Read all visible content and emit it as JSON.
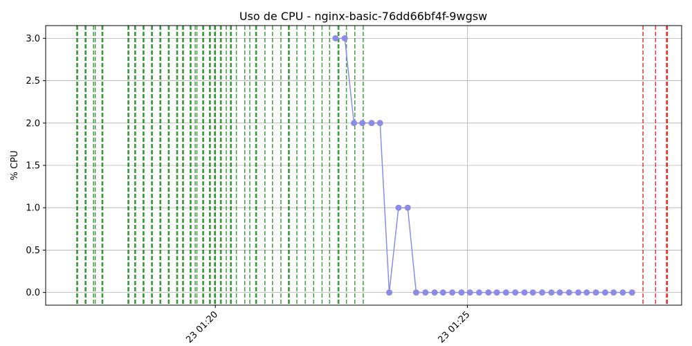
{
  "chart_data": {
    "type": "line",
    "title": "Uso de CPU - nginx-basic-76dd66bf4f-9wgsw",
    "xlabel": "",
    "ylabel": "% CPU",
    "x_axis": {
      "type": "time",
      "unit": "minutes",
      "range": [
        "01:16:38",
        "01:29:15"
      ],
      "ticks": [
        {
          "value": "01:20",
          "label": "23 01:20"
        },
        {
          "value": "01:25",
          "label": "23 01:25"
        }
      ]
    },
    "ylim": [
      -0.15,
      3.15
    ],
    "y_ticks": [
      "0.0",
      "0.5",
      "1.0",
      "1.5",
      "2.0",
      "2.5",
      "3.0"
    ],
    "grid": true,
    "colors": {
      "series": "#8c8ce6",
      "green_events": "#008000",
      "red_events": "#e60000"
    },
    "series": [
      {
        "x": [
          "01:22:23",
          "01:22:34",
          "01:22:45",
          "01:22:55",
          "01:23:06",
          "01:23:16",
          "01:23:27",
          "01:23:38",
          "01:23:49",
          "01:23:59",
          "01:24:10",
          "01:24:21",
          "01:24:31",
          "01:24:42",
          "01:24:53",
          "01:25:03",
          "01:25:14",
          "01:25:25",
          "01:25:35",
          "01:25:46",
          "01:25:57",
          "01:26:08",
          "01:26:18",
          "01:26:29",
          "01:26:40",
          "01:26:50",
          "01:27:01",
          "01:27:12",
          "01:27:22",
          "01:27:33",
          "01:27:44",
          "01:27:54",
          "01:28:05",
          "01:28:16"
        ],
        "values": [
          3,
          3,
          2,
          2,
          2,
          2,
          0,
          1,
          1,
          0,
          0,
          0,
          0,
          0,
          0,
          0,
          0,
          0,
          0,
          0,
          0,
          0,
          0,
          0,
          0,
          0,
          0,
          0,
          0,
          0,
          0,
          0,
          0,
          0
        ]
      }
    ],
    "vertical_lines": {
      "green": [
        "01:17:15",
        "01:17:16",
        "01:17:25",
        "01:17:26",
        "01:17:35",
        "01:17:37",
        "01:17:45",
        "01:17:46",
        "01:18:16",
        "01:18:17",
        "01:18:24",
        "01:18:25",
        "01:18:34",
        "01:18:35",
        "01:18:44",
        "01:18:45",
        "01:18:54",
        "01:18:55",
        "01:19:04",
        "01:19:05",
        "01:19:14",
        "01:19:15",
        "01:19:21",
        "01:19:22",
        "01:19:30",
        "01:19:31",
        "01:19:36",
        "01:19:38",
        "01:19:45",
        "01:19:46",
        "01:19:53",
        "01:19:54",
        "01:19:59",
        "01:20:00",
        "01:20:06",
        "01:20:07",
        "01:20:13",
        "01:20:18",
        "01:20:19",
        "01:20:25",
        "01:20:35",
        "01:20:41",
        "01:20:48",
        "01:20:49",
        "01:20:59",
        "01:21:08",
        "01:21:18",
        "01:21:27",
        "01:21:28",
        "01:21:37",
        "01:21:47",
        "01:21:57",
        "01:22:07",
        "01:22:16",
        "01:22:26",
        "01:22:27",
        "01:22:36",
        "01:22:46",
        "01:22:56"
      ],
      "red": [
        "01:28:29",
        "01:28:44",
        "01:28:57",
        "01:28:58"
      ]
    }
  }
}
